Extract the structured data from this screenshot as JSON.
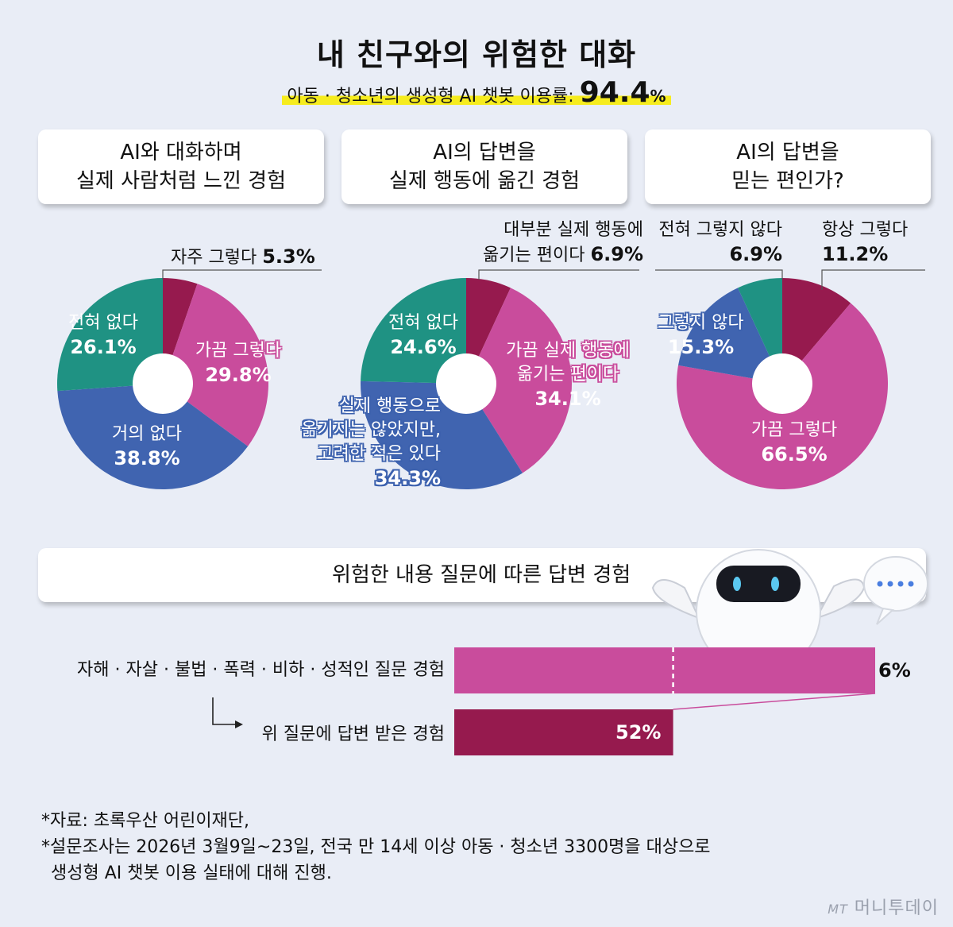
{
  "title": "내 친구와의 위험한 대화",
  "subtitle": {
    "text": "아동 · 청소년의 생성형 AI 챗봇 이용률:",
    "value": "94.4",
    "unit": "%"
  },
  "colors": {
    "maroon": "#961a4e",
    "pink": "#c94c9c",
    "blue": "#4064b0",
    "teal": "#1f9283"
  },
  "chart_data": [
    {
      "type": "pie",
      "title": "AI와 대화하며 실제 사람처럼 느낀 경험",
      "title_lines": [
        "AI와 대화하며",
        "실제 사람처럼 느낀 경험"
      ],
      "slices": [
        {
          "label": "자주 그렇다",
          "value": 5.3,
          "value_text": "5.3%",
          "color": "#961a4e"
        },
        {
          "label": "가끔 그렇다",
          "value": 29.8,
          "value_text": "29.8%",
          "color": "#c94c9c"
        },
        {
          "label": "거의 없다",
          "value": 38.8,
          "value_text": "38.8%",
          "color": "#4064b0"
        },
        {
          "label": "전혀 없다",
          "value": 26.1,
          "value_text": "26.1%",
          "color": "#1f9283"
        }
      ]
    },
    {
      "type": "pie",
      "title": "AI의 답변을 실제 행동에 옮긴 경험",
      "title_lines": [
        "AI의 답변을",
        "실제 행동에 옮긴 경험"
      ],
      "slices": [
        {
          "label": "대부분 실제 행동에 옮기는 편이다",
          "label_lines": [
            "대부분 실제 행동에",
            "옮기는 편이다"
          ],
          "value": 6.9,
          "value_text": "6.9%",
          "color": "#961a4e"
        },
        {
          "label": "가끔 실제 행동에 옮기는 편이다",
          "label_lines": [
            "가끔 실제 행동에",
            "옮기는 편이다"
          ],
          "value": 34.1,
          "value_text": "34.1%",
          "color": "#c94c9c"
        },
        {
          "label": "실제 행동으로 옮기지는 않았지만, 고려한 적은 있다",
          "label_lines": [
            "실제 행동으로",
            "옮기지는 않았지만,",
            "고려한 적은 있다"
          ],
          "value": 34.3,
          "value_text": "34.3%",
          "color": "#4064b0"
        },
        {
          "label": "전혀 없다",
          "value": 24.6,
          "value_text": "24.6%",
          "color": "#1f9283"
        }
      ]
    },
    {
      "type": "pie",
      "title": "AI의 답변을 믿는 편인가?",
      "title_lines": [
        "AI의 답변을",
        "믿는 편인가?"
      ],
      "slices": [
        {
          "label": "항상 그렇다",
          "value": 11.2,
          "value_text": "11.2%",
          "color": "#961a4e"
        },
        {
          "label": "가끔 그렇다",
          "value": 66.5,
          "value_text": "66.5%",
          "color": "#c94c9c"
        },
        {
          "label": "그렇지 않다",
          "value": 15.3,
          "value_text": "15.3%",
          "color": "#4064b0"
        },
        {
          "label": "전혀 그렇지 않다",
          "value": 6.9,
          "value_text": "6.9%",
          "color": "#1f9283"
        }
      ]
    },
    {
      "type": "bar",
      "title": "위험한 내용 질문에 따른 답변 경험",
      "bars": [
        {
          "label": "자해 · 자살 · 불법 · 폭력 · 비하 · 성적인 질문 경험",
          "value": 6,
          "value_text": "6%",
          "color": "#c94c9c"
        },
        {
          "label": "위 질문에 답변 받은 경험",
          "value": 52,
          "value_text": "52%",
          "color": "#961a4e",
          "base": "자해 · 자살 · 불법 · 폭력 · 비하 · 성적인 질문 경험"
        }
      ]
    }
  ],
  "notes": [
    "*자료: 초록우산 어린이재단,",
    "*설문조사는 2026년 3월9일~23일, 전국 만 14세 이상 아동 · 청소년 3300명을 대상으로",
    "생성형 AI 챗봇 이용 실태에 대해 진행."
  ],
  "watermark": {
    "mt": "MT",
    "name": "머니투데이"
  },
  "icons": {
    "robot": "robot-mascot-icon",
    "bubble": "speech-bubble-icon",
    "arrow": "corner-arrow-icon"
  }
}
